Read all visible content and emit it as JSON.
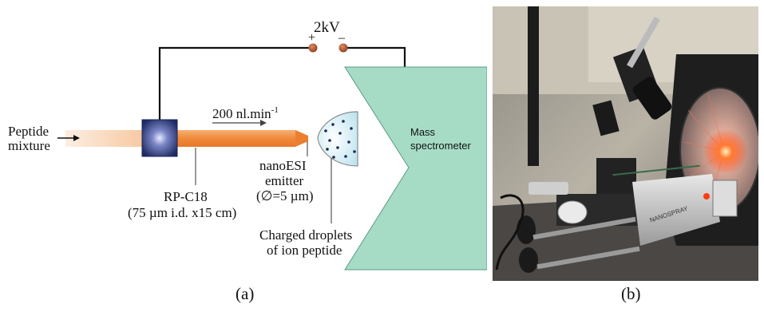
{
  "diagram": {
    "voltage_label": "2kV",
    "plus_sign": "+",
    "minus_sign": "–",
    "flow_rate": "200 nl.min",
    "flow_rate_exp": "-1",
    "inlet_label_line1": "Peptide",
    "inlet_label_line2": "mixture",
    "column_label_line1": "RP-C18",
    "column_label_line2": "(75 µm i.d. x15 cm)",
    "emitter_label_line1": "nanoESI",
    "emitter_label_line2": "emitter",
    "emitter_label_line3": "(∅=5 µm)",
    "droplets_label_line1": "Charged droplets",
    "droplets_label_line2": "of ion peptide",
    "ms_label_line1": "Mass",
    "ms_label_line2": "spectrometer"
  },
  "photo": {
    "device_brand": "NANOSPRAY"
  },
  "captions": {
    "a": "(a)",
    "b": "(b)"
  },
  "colors": {
    "column_orange": "#f08a3a",
    "column_pale": "#f6c8a0",
    "pump_blue": "#24306b",
    "ms_green": "#a6dcc6",
    "ms_edge": "#5a9a84",
    "electrode_brown": "#a0502a",
    "laser_red": "#ff3a10"
  }
}
